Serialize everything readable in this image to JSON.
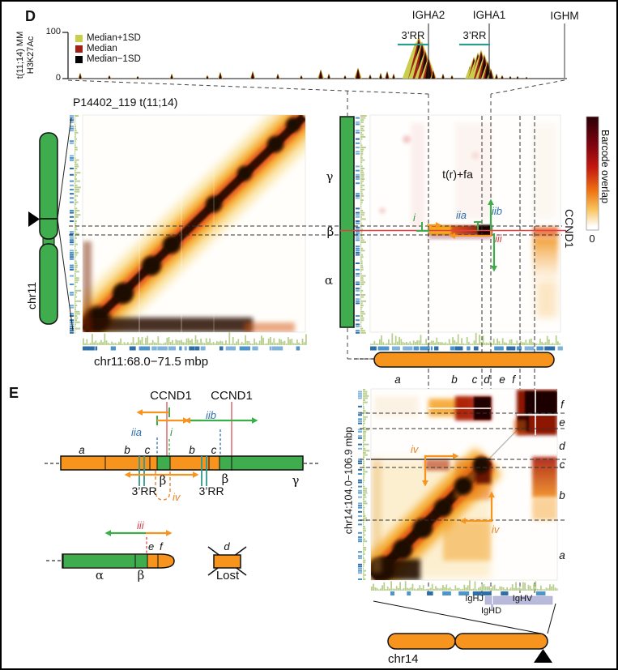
{
  "panels": {
    "d": "D",
    "e": "E"
  },
  "chip_track": {
    "ylabel_line1": "t(11;14) MM",
    "ylabel_line2": "H3K27Ac",
    "y_max": "100",
    "y_min": "0",
    "legend": [
      {
        "label": "Median+1SD",
        "color": "#c9ce4d"
      },
      {
        "label": "Median",
        "color": "#a02018"
      },
      {
        "label": "Median−1SD",
        "color": "#000000"
      }
    ],
    "genes": [
      {
        "name": "IGHA2"
      },
      {
        "name": "IGHA1"
      },
      {
        "name": "IGHM"
      }
    ],
    "rr_label": "3’RR",
    "peaks": [
      [
        97,
        7
      ],
      [
        133,
        4
      ],
      [
        168,
        3
      ],
      [
        210,
        6
      ],
      [
        254,
        4
      ],
      [
        270,
        8
      ],
      [
        310,
        9
      ],
      [
        341,
        6
      ],
      [
        370,
        4
      ],
      [
        394,
        11
      ],
      [
        404,
        6
      ],
      [
        424,
        4
      ],
      [
        440,
        13
      ],
      [
        455,
        5
      ],
      [
        468,
        7
      ],
      [
        476,
        9
      ],
      [
        484,
        6
      ],
      [
        502,
        18
      ],
      [
        507,
        30
      ],
      [
        511,
        43
      ],
      [
        515,
        50
      ],
      [
        519,
        44
      ],
      [
        523,
        34
      ],
      [
        527,
        26
      ],
      [
        533,
        10
      ],
      [
        545,
        6
      ],
      [
        556,
        4
      ],
      [
        578,
        15
      ],
      [
        583,
        26
      ],
      [
        588,
        31
      ],
      [
        592,
        34
      ],
      [
        596,
        29
      ],
      [
        600,
        21
      ],
      [
        604,
        12
      ],
      [
        611,
        6
      ],
      [
        618,
        4
      ],
      [
        628,
        3
      ],
      [
        637,
        3
      ],
      [
        648,
        2
      ]
    ]
  },
  "hic_left": {
    "title": "P14402_119 t(11;14)",
    "xlabel": "chr11:68.0−71.5 mbp",
    "chrom_label": "chr11"
  },
  "hic_right": {
    "annotation": "t(r)+fa",
    "gene_label": "CCND1",
    "greek": {
      "gamma": "γ",
      "beta": "β",
      "alpha": "α"
    },
    "arrow_labels": {
      "i": "i",
      "iia": "iia",
      "iib": "iib",
      "iii": "iii",
      "iv": "iv"
    },
    "segments": [
      "a",
      "b",
      "c",
      "d",
      "e",
      "f"
    ],
    "colorbar": {
      "label": "Barcode overlap",
      "zero": "0"
    }
  },
  "hic_bottom": {
    "ylabel": "chr14:104.0−106.9 mbp",
    "segments_right": [
      "f",
      "e",
      "d",
      "c",
      "b",
      "a"
    ],
    "igh_labels": {
      "ighj": "IgHJ",
      "ighv": "IgHV",
      "ighd": "IgHD"
    },
    "chrom_label": "chr14"
  },
  "allele_diagram": {
    "gene_label": "CCND1",
    "letters": {
      "a": "a",
      "b": "b",
      "c": "c",
      "d": "d",
      "e": "e",
      "f": "f"
    },
    "greek": {
      "alpha": "α",
      "beta": "β",
      "gamma": "γ"
    },
    "rr_label": "3’RR",
    "lost_label": "Lost"
  },
  "colors": {
    "chrom_green": "#3fad4d",
    "chrom_orange": "#f7941e",
    "teal_rr": "#2e9b8f",
    "red_line": "#e04046",
    "blue_label": "#2d6fb0",
    "red_label": "#d8414b",
    "orange_label": "#e8862c",
    "lavender": "#b9badb",
    "heat_dark": "#2a0a02",
    "heat_orange": "#f5a623"
  }
}
